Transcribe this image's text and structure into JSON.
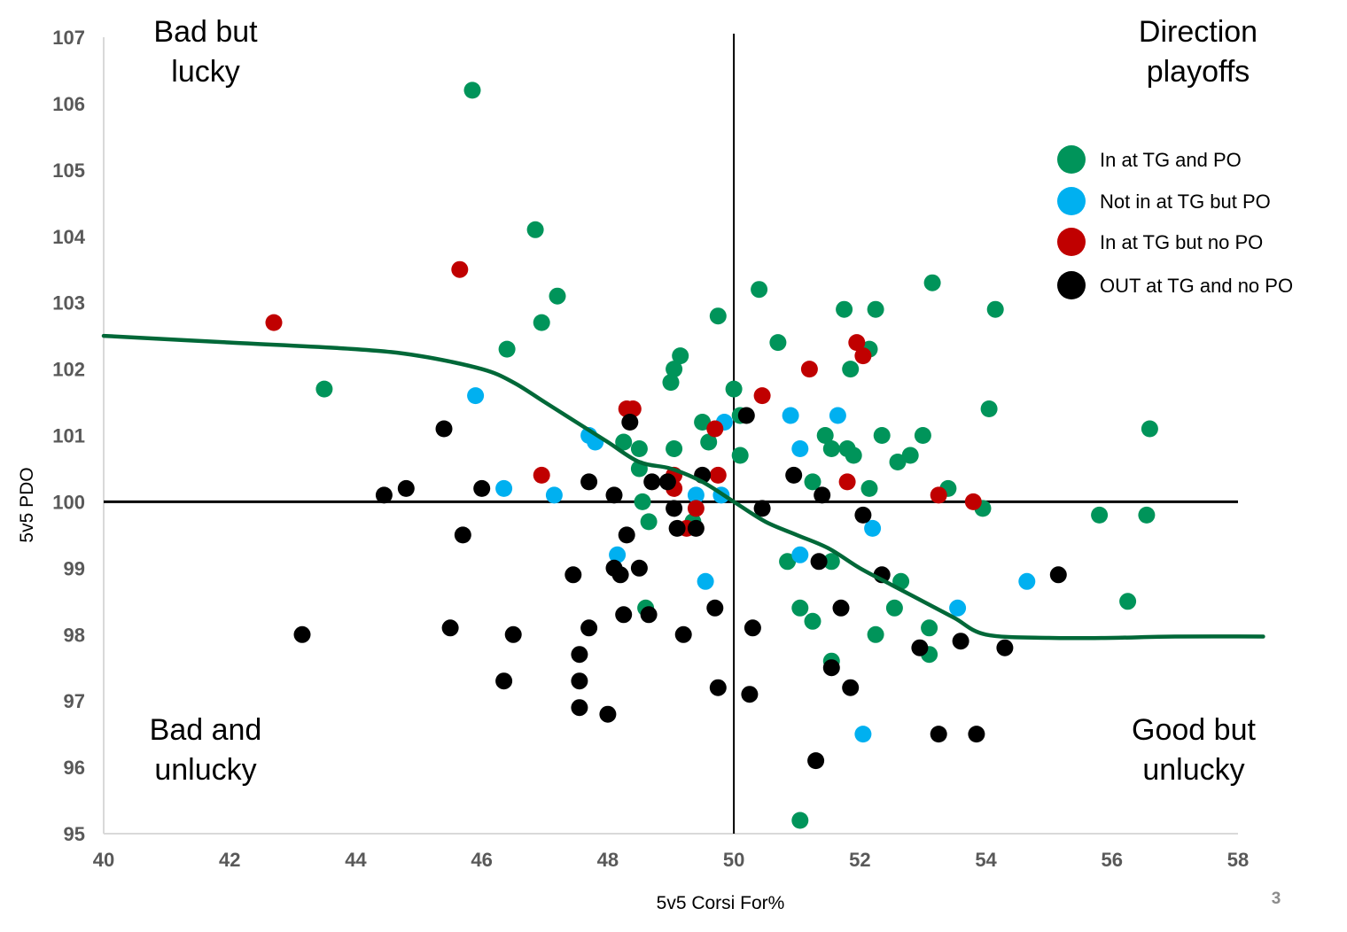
{
  "page_number": "3",
  "chart_data": {
    "type": "scatter",
    "xlabel": "5v5 Corsi For%",
    "ylabel": "5v5 PDO",
    "xlim": [
      40,
      58
    ],
    "ylim": [
      95,
      107
    ],
    "xticks": [
      "40",
      "42",
      "44",
      "46",
      "48",
      "50",
      "52",
      "54",
      "56",
      "58"
    ],
    "yticks": [
      "95",
      "96",
      "97",
      "98",
      "99",
      "100",
      "101",
      "102",
      "103",
      "104",
      "105",
      "106",
      "107"
    ],
    "reference_lines": {
      "x": 50,
      "y": 100
    },
    "quadrant_labels": {
      "top_left": [
        "Bad but",
        "lucky"
      ],
      "top_right": [
        "Direction",
        "playoffs"
      ],
      "bottom_left": [
        "Bad and",
        "unlucky"
      ],
      "bottom_right": [
        "Good but",
        "unlucky"
      ]
    },
    "highlight_color": "#00a651",
    "legend_position": "top-right",
    "trend_curve": {
      "color": "#006838",
      "points": [
        [
          40,
          102.5
        ],
        [
          42,
          102.4
        ],
        [
          44,
          102.3
        ],
        [
          45,
          102.2
        ],
        [
          46,
          102.0
        ],
        [
          46.5,
          101.8
        ],
        [
          47,
          101.5
        ],
        [
          47.5,
          101.2
        ],
        [
          48,
          100.9
        ],
        [
          48.5,
          100.6
        ],
        [
          49,
          100.5
        ],
        [
          49.5,
          100.3
        ],
        [
          50,
          100.0
        ],
        [
          50.5,
          99.7
        ],
        [
          51,
          99.5
        ],
        [
          51.5,
          99.3
        ],
        [
          52,
          99.0
        ],
        [
          52.5,
          98.75
        ],
        [
          53,
          98.5
        ],
        [
          53.5,
          98.25
        ],
        [
          54,
          98.0
        ],
        [
          55,
          97.95
        ],
        [
          56,
          97.95
        ],
        [
          57,
          97.97
        ],
        [
          58.4,
          97.97
        ]
      ]
    },
    "series": [
      {
        "name": "In at TG and PO",
        "color": "#00945a",
        "points": [
          [
            45.85,
            106.2
          ],
          [
            46.85,
            104.1
          ],
          [
            47.2,
            103.1
          ],
          [
            46.95,
            102.7
          ],
          [
            46.4,
            102.3
          ],
          [
            43.5,
            101.7
          ],
          [
            50.4,
            103.2
          ],
          [
            49.75,
            102.8
          ],
          [
            50.7,
            102.4
          ],
          [
            49.15,
            102.2
          ],
          [
            49.05,
            102.0
          ],
          [
            49,
            101.8
          ],
          [
            50,
            101.7
          ],
          [
            49.5,
            101.2
          ],
          [
            49.6,
            100.9
          ],
          [
            50.1,
            101.3
          ],
          [
            48.25,
            100.9
          ],
          [
            48.5,
            100.8
          ],
          [
            49.05,
            100.8
          ],
          [
            50.1,
            100.7
          ],
          [
            48.5,
            100.5
          ],
          [
            48.55,
            100.0
          ],
          [
            48.65,
            99.7
          ],
          [
            49.35,
            99.7
          ],
          [
            51.75,
            102.9
          ],
          [
            52.25,
            102.9
          ],
          [
            52.15,
            102.3
          ],
          [
            51.85,
            102.0
          ],
          [
            53.15,
            103.3
          ],
          [
            54.15,
            102.9
          ],
          [
            54.05,
            101.4
          ],
          [
            56.6,
            101.1
          ],
          [
            51.45,
            101.0
          ],
          [
            51.55,
            100.8
          ],
          [
            51.8,
            100.8
          ],
          [
            51.9,
            100.7
          ],
          [
            52.35,
            101.0
          ],
          [
            53,
            101.0
          ],
          [
            52.8,
            100.7
          ],
          [
            52.6,
            100.6
          ],
          [
            51.25,
            100.3
          ],
          [
            52.15,
            100.2
          ],
          [
            53.4,
            100.2
          ],
          [
            53.95,
            99.9
          ],
          [
            55.8,
            99.8
          ],
          [
            56.55,
            99.8
          ],
          [
            50.85,
            99.1
          ],
          [
            51.55,
            99.1
          ],
          [
            52.65,
            98.8
          ],
          [
            56.25,
            98.5
          ],
          [
            48.6,
            98.4
          ],
          [
            51.05,
            98.4
          ],
          [
            51.25,
            98.2
          ],
          [
            52.55,
            98.4
          ],
          [
            53.1,
            98.1
          ],
          [
            53.1,
            97.7
          ],
          [
            52.25,
            98.0
          ],
          [
            51.55,
            97.6
          ],
          [
            51.05,
            95.2
          ]
        ]
      },
      {
        "name": "Not in at TG but PO",
        "color": "#00b0f0",
        "points": [
          [
            45.9,
            101.6
          ],
          [
            47.7,
            101.0
          ],
          [
            47.8,
            100.9
          ],
          [
            46.35,
            100.2
          ],
          [
            47.15,
            100.1
          ],
          [
            49.4,
            100.1
          ],
          [
            49.8,
            100.1
          ],
          [
            49.85,
            101.2
          ],
          [
            50.9,
            101.3
          ],
          [
            51.05,
            100.8
          ],
          [
            51.65,
            101.3
          ],
          [
            48.15,
            99.2
          ],
          [
            49.55,
            98.8
          ],
          [
            51.05,
            99.2
          ],
          [
            52.2,
            99.6
          ],
          [
            53.55,
            98.4
          ],
          [
            54.65,
            98.8
          ],
          [
            52.05,
            96.5
          ]
        ]
      },
      {
        "name": "In at TG but no PO",
        "color": "#c00000",
        "points": [
          [
            42.7,
            102.7
          ],
          [
            45.65,
            103.5
          ],
          [
            46.95,
            100.4
          ],
          [
            48.3,
            101.4
          ],
          [
            48.4,
            101.4
          ],
          [
            49.05,
            100.4
          ],
          [
            49.05,
            100.2
          ],
          [
            49.25,
            99.6
          ],
          [
            49.4,
            99.9
          ],
          [
            49.7,
            101.1
          ],
          [
            49.75,
            100.4
          ],
          [
            50.45,
            101.6
          ],
          [
            51.2,
            102.0
          ],
          [
            51.8,
            100.3
          ],
          [
            51.95,
            102.4
          ],
          [
            52.05,
            102.2
          ],
          [
            53.25,
            100.1
          ],
          [
            53.8,
            100.0
          ]
        ]
      },
      {
        "name": "OUT at TG and no PO",
        "color": "#000000",
        "points": [
          [
            43.15,
            98.0
          ],
          [
            44.45,
            100.1
          ],
          [
            44.8,
            100.2
          ],
          [
            45.4,
            101.1
          ],
          [
            45.5,
            98.1
          ],
          [
            45.7,
            99.5
          ],
          [
            46,
            100.2
          ],
          [
            46.35,
            97.3
          ],
          [
            46.5,
            98.0
          ],
          [
            47.45,
            98.9
          ],
          [
            47.55,
            97.7
          ],
          [
            47.55,
            97.3
          ],
          [
            47.55,
            96.9
          ],
          [
            47.7,
            100.3
          ],
          [
            47.7,
            98.1
          ],
          [
            48,
            96.8
          ],
          [
            48.1,
            100.1
          ],
          [
            48.1,
            99.0
          ],
          [
            48.2,
            98.9
          ],
          [
            48.25,
            98.3
          ],
          [
            48.3,
            99.5
          ],
          [
            48.35,
            101.2
          ],
          [
            48.5,
            99.0
          ],
          [
            48.65,
            98.3
          ],
          [
            48.7,
            100.3
          ],
          [
            48.95,
            100.3
          ],
          [
            49.05,
            99.9
          ],
          [
            49.1,
            99.6
          ],
          [
            49.2,
            98.0
          ],
          [
            49.4,
            99.6
          ],
          [
            49.5,
            100.4
          ],
          [
            49.7,
            98.4
          ],
          [
            49.75,
            97.2
          ],
          [
            50.2,
            101.3
          ],
          [
            50.25,
            97.1
          ],
          [
            50.3,
            98.1
          ],
          [
            50.45,
            99.9
          ],
          [
            50.95,
            100.4
          ],
          [
            51.3,
            96.1
          ],
          [
            51.35,
            99.1
          ],
          [
            51.4,
            100.1
          ],
          [
            51.55,
            97.5
          ],
          [
            51.7,
            98.4
          ],
          [
            51.85,
            97.2
          ],
          [
            52.05,
            99.8
          ],
          [
            52.35,
            98.9
          ],
          [
            52.95,
            97.8
          ],
          [
            53.25,
            96.5
          ],
          [
            53.6,
            97.9
          ],
          [
            53.85,
            96.5
          ],
          [
            54.3,
            97.8
          ],
          [
            55.15,
            98.9
          ]
        ]
      }
    ]
  }
}
